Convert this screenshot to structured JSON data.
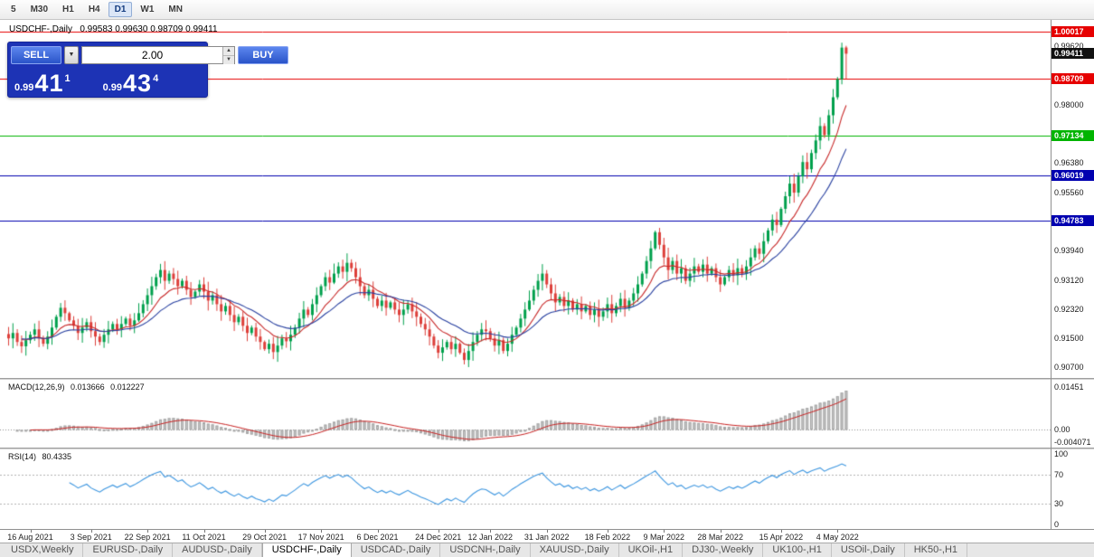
{
  "toolbar": {
    "items": [
      {
        "label": "5",
        "active": false
      },
      {
        "label": "M30",
        "active": false
      },
      {
        "label": "H1",
        "active": false
      },
      {
        "label": "H4",
        "active": false
      },
      {
        "label": "D1",
        "active": true
      },
      {
        "label": "W1",
        "active": false
      },
      {
        "label": "MN",
        "active": false
      }
    ]
  },
  "chart": {
    "title_symbol": "USDCHF-,Daily",
    "title_ohlc": "0.99583 0.99630 0.98709 0.99411"
  },
  "trade_panel": {
    "sell_label": "SELL",
    "buy_label": "BUY",
    "volume": "2.00",
    "sell_price_small": "0.99",
    "sell_price_big": "41",
    "sell_price_sup": "1",
    "buy_price_small": "0.99",
    "buy_price_big": "43",
    "buy_price_sup": "4"
  },
  "icons": {
    "dropdown": "▼",
    "spinner_up": "▲",
    "spinner_down": "▼"
  },
  "chart_data": {
    "type": "candlestick",
    "symbol": "USDCHF-",
    "timeframe": "Daily",
    "price_axis": {
      "top": 1.0035,
      "bottom": 0.904,
      "ticks": [
        {
          "label": "0.99620",
          "value": 0.9962
        },
        {
          "label": "0.98000",
          "value": 0.98
        },
        {
          "label": "0.97180",
          "value": 0.9718
        },
        {
          "label": "0.96380",
          "value": 0.9638
        },
        {
          "label": "0.95560",
          "value": 0.9556
        },
        {
          "label": "0.93940",
          "value": 0.9394
        },
        {
          "label": "0.93120",
          "value": 0.9312
        },
        {
          "label": "0.92320",
          "value": 0.9232
        },
        {
          "label": "0.91500",
          "value": 0.915
        },
        {
          "label": "0.90700",
          "value": 0.907
        }
      ]
    },
    "levels": [
      {
        "label": "1.00017",
        "value": 1.00017,
        "color": "#e60000"
      },
      {
        "label": "0.98709",
        "value": 0.98709,
        "color": "#e60000"
      },
      {
        "label": "0.97134",
        "value": 0.97134,
        "color": "#00b400"
      },
      {
        "label": "0.96019",
        "value": 0.96019,
        "color": "#0000b0"
      },
      {
        "label": "0.94783",
        "value": 0.94783,
        "color": "#0000b0"
      }
    ],
    "current_price": {
      "label": "0.99411",
      "value": 0.99411,
      "color": "#111111"
    },
    "colors": {
      "up": "#00a04c",
      "down": "#dd3f3a",
      "ma_fast": "#c82828",
      "ma_slow": "#2840a0"
    },
    "ma": [
      {
        "period": 10,
        "color": "#c82828"
      },
      {
        "period": 21,
        "color": "#2840a0"
      }
    ],
    "candles": {
      "closes": [
        0.915,
        0.9165,
        0.914,
        0.9128,
        0.9145,
        0.916,
        0.9175,
        0.915,
        0.9135,
        0.9155,
        0.918,
        0.921,
        0.9235,
        0.922,
        0.92,
        0.9185,
        0.9165,
        0.918,
        0.9195,
        0.917,
        0.9155,
        0.914,
        0.916,
        0.9175,
        0.919,
        0.9175,
        0.919,
        0.9205,
        0.9185,
        0.92,
        0.922,
        0.9245,
        0.927,
        0.9295,
        0.932,
        0.934,
        0.931,
        0.933,
        0.9315,
        0.9295,
        0.931,
        0.9285,
        0.9265,
        0.928,
        0.93,
        0.928,
        0.9255,
        0.927,
        0.9245,
        0.9225,
        0.924,
        0.9215,
        0.9195,
        0.921,
        0.9185,
        0.9165,
        0.918,
        0.9155,
        0.914,
        0.912,
        0.9135,
        0.9112,
        0.913,
        0.915,
        0.9142,
        0.916,
        0.918,
        0.9205,
        0.923,
        0.9215,
        0.9245,
        0.927,
        0.9295,
        0.932,
        0.9305,
        0.933,
        0.935,
        0.9335,
        0.936,
        0.9345,
        0.932,
        0.9295,
        0.927,
        0.9285,
        0.926,
        0.924,
        0.9255,
        0.9235,
        0.925,
        0.923,
        0.9215,
        0.923,
        0.9245,
        0.9225,
        0.921,
        0.919,
        0.9175,
        0.9155,
        0.913,
        0.911,
        0.9125,
        0.914,
        0.912,
        0.9135,
        0.911,
        0.909,
        0.9115,
        0.914,
        0.916,
        0.9175,
        0.917,
        0.915,
        0.913,
        0.9145,
        0.9115,
        0.9135,
        0.916,
        0.918,
        0.9205,
        0.923,
        0.9255,
        0.9285,
        0.931,
        0.933,
        0.93,
        0.9275,
        0.925,
        0.9265,
        0.924,
        0.9255,
        0.923,
        0.9245,
        0.9225,
        0.924,
        0.9215,
        0.923,
        0.921,
        0.9225,
        0.9245,
        0.922,
        0.924,
        0.926,
        0.9235,
        0.9255,
        0.9275,
        0.93,
        0.933,
        0.9365,
        0.94,
        0.9445,
        0.941,
        0.9375,
        0.934,
        0.9365,
        0.933,
        0.9345,
        0.931,
        0.933,
        0.935,
        0.9335,
        0.9355,
        0.933,
        0.9345,
        0.932,
        0.93,
        0.932,
        0.934,
        0.9325,
        0.9345,
        0.933,
        0.935,
        0.9375,
        0.94,
        0.9385,
        0.942,
        0.945,
        0.948,
        0.9465,
        0.951,
        0.9545,
        0.958,
        0.9555,
        0.96,
        0.964,
        0.962,
        0.9665,
        0.97,
        0.974,
        0.9715,
        0.977,
        0.982,
        0.987,
        0.9958,
        0.9941
      ],
      "last": {
        "o": 0.99583,
        "h": 0.9963,
        "l": 0.98709,
        "c": 0.99411
      }
    },
    "x_axis": {
      "labels": [
        {
          "label": "16 Aug 2021",
          "index": 5
        },
        {
          "label": "3 Sep 2021",
          "index": 19
        },
        {
          "label": "22 Sep 2021",
          "index": 32
        },
        {
          "label": "11 Oct 2021",
          "index": 45
        },
        {
          "label": "29 Oct 2021",
          "index": 59
        },
        {
          "label": "17 Nov 2021",
          "index": 72
        },
        {
          "label": "6 Dec 2021",
          "index": 85
        },
        {
          "label": "24 Dec 2021",
          "index": 99
        },
        {
          "label": "12 Jan 2022",
          "index": 111
        },
        {
          "label": "31 Jan 2022",
          "index": 124
        },
        {
          "label": "18 Feb 2022",
          "index": 138
        },
        {
          "label": "9 Mar 2022",
          "index": 151
        },
        {
          "label": "28 Mar 2022",
          "index": 164
        },
        {
          "label": "15 Apr 2022",
          "index": 178
        },
        {
          "label": "4 May 2022",
          "index": 191
        }
      ]
    },
    "macd": {
      "title": "MACD(12,26,9)",
      "value_main": "0.013666",
      "value_signal": "0.012227",
      "fast": 12,
      "slow": 26,
      "signal": 9,
      "range": [
        -0.006,
        0.017
      ],
      "hist_color": "#c9c9c9",
      "hist_border": "#a5a5a5",
      "signal_color": "#c82020",
      "axis": [
        {
          "label": "0.01451",
          "value": 0.01451
        },
        {
          "label": "0.00",
          "value": 0
        },
        {
          "label": "-0.004071",
          "value": -0.004071
        }
      ]
    },
    "rsi": {
      "title": "RSI(14)",
      "value": "80.4335",
      "period": 14,
      "range": [
        -6,
        106
      ],
      "line_color": "#3c96e0",
      "level_lines": [
        70,
        30
      ],
      "axis": [
        {
          "label": "100",
          "value": 100
        },
        {
          "label": "70",
          "value": 70
        },
        {
          "label": "30",
          "value": 30
        },
        {
          "label": "0",
          "value": 0
        }
      ]
    }
  },
  "tabs": {
    "items": [
      {
        "label": "USDX,Weekly",
        "active": false
      },
      {
        "label": "EURUSD-,Daily",
        "active": false
      },
      {
        "label": "AUDUSD-,Daily",
        "active": false
      },
      {
        "label": "USDCHF-,Daily",
        "active": true
      },
      {
        "label": "USDCAD-,Daily",
        "active": false
      },
      {
        "label": "USDCNH-,Daily",
        "active": false
      },
      {
        "label": "XAUUSD-,Daily",
        "active": false
      },
      {
        "label": "UKOil-,H1",
        "active": false
      },
      {
        "label": "DJ30-,Weekly",
        "active": false
      },
      {
        "label": "UK100-,H1",
        "active": false
      },
      {
        "label": "USOil-,Daily",
        "active": false
      },
      {
        "label": "HK50-,H1",
        "active": false
      }
    ]
  }
}
